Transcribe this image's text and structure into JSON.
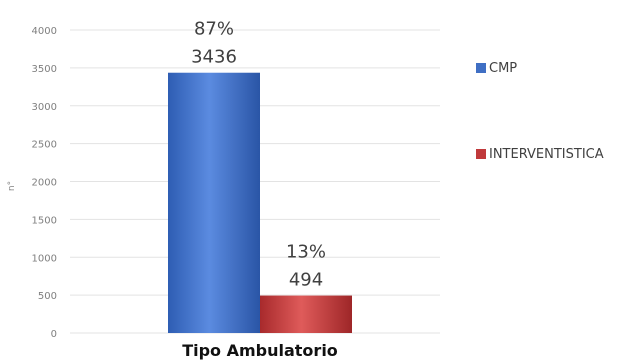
{
  "chart_data": {
    "type": "bar",
    "categories": [
      "Tipo Ambulatorio"
    ],
    "series": [
      {
        "name": "CMP",
        "values": [
          3436
        ],
        "percent_label": "87%",
        "color": "#3f6fc4"
      },
      {
        "name": "INTERVENTISTICA",
        "values": [
          494
        ],
        "percent_label": "13%",
        "color": "#c0393b"
      }
    ],
    "ylabel": "n°",
    "ylim": [
      0,
      4000
    ],
    "yticks": [
      0,
      500,
      1000,
      1500,
      2000,
      2500,
      3000,
      3500,
      4000
    ],
    "grid": true,
    "legend": "right"
  }
}
